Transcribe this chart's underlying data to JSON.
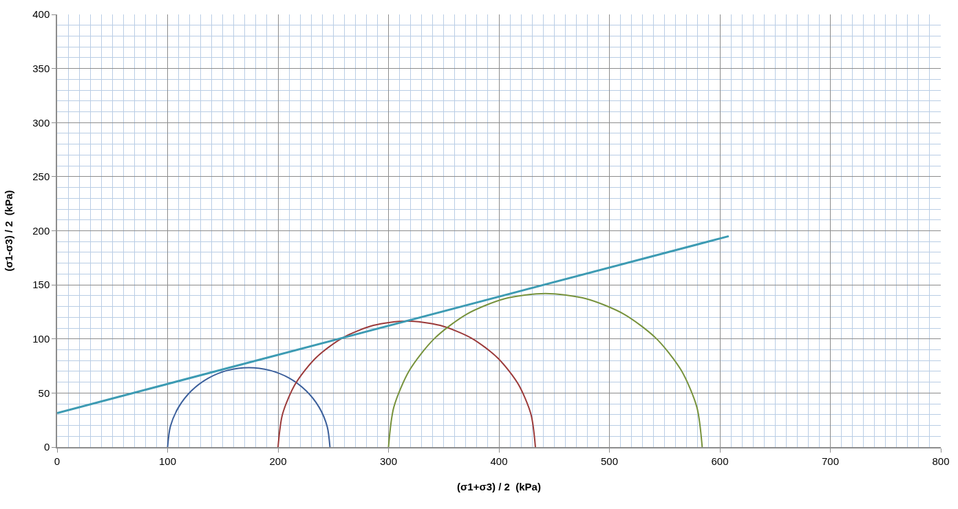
{
  "chart_data": {
    "type": "line",
    "xlabel": "(σ1+σ3) / 2  (kPa)",
    "ylabel": "(σ1-σ3) / 2  (kPa)",
    "xlim": [
      0,
      800
    ],
    "xticks": [
      0,
      {
        "value": 10,
        "label": null
      },
      {
        "value": 20,
        "label": null
      },
      {
        "value": 30,
        "label": null
      },
      {
        "value": 40,
        "label": null
      },
      {
        "value": 50,
        "label": null
      },
      {
        "value": 60,
        "label": null
      },
      {
        "value": 70,
        "label": null
      },
      {
        "value": 80,
        "label": null
      },
      {
        "value": 90,
        "label": null
      },
      100,
      {
        "value": 110,
        "label": null
      },
      {
        "value": 120,
        "label": null
      },
      {
        "value": 130,
        "label": null
      },
      {
        "value": 140,
        "label": null
      },
      {
        "value": 150,
        "label": null
      },
      {
        "value": 160,
        "label": null
      },
      {
        "value": 170,
        "label": null
      },
      {
        "value": 180,
        "label": null
      },
      {
        "value": 190,
        "label": null
      },
      200,
      {
        "value": 210,
        "label": null
      },
      {
        "value": 220,
        "label": null
      },
      {
        "value": 230,
        "label": null
      },
      {
        "value": 240,
        "label": null
      },
      {
        "value": 250,
        "label": null
      },
      {
        "value": 260,
        "label": null
      },
      {
        "value": 270,
        "label": null
      },
      {
        "value": 280,
        "label": null
      },
      {
        "value": 290,
        "label": null
      },
      300,
      {
        "value": 310,
        "label": null
      },
      {
        "value": 320,
        "label": null
      },
      {
        "value": 330,
        "label": null
      },
      {
        "value": 340,
        "label": null
      },
      {
        "value": 350,
        "label": null
      },
      {
        "value": 360,
        "label": null
      },
      {
        "value": 370,
        "label": null
      },
      {
        "value": 380,
        "label": null
      },
      {
        "value": 390,
        "label": null
      },
      400,
      {
        "value": 410,
        "label": null
      },
      {
        "value": 420,
        "label": null
      },
      {
        "value": 430,
        "label": null
      },
      {
        "value": 440,
        "label": null
      },
      {
        "value": 450,
        "label": null
      },
      {
        "value": 460,
        "label": null
      },
      {
        "value": 470,
        "label": null
      },
      {
        "value": 480,
        "label": null
      },
      {
        "value": 490,
        "label": null
      },
      500,
      {
        "value": 510,
        "label": null
      },
      {
        "value": 520,
        "label": null
      },
      {
        "value": 530,
        "label": null
      },
      {
        "value": 540,
        "label": null
      },
      {
        "value": 550,
        "label": null
      },
      {
        "value": 560,
        "label": null
      },
      {
        "value": 570,
        "label": null
      },
      {
        "value": 580,
        "label": null
      },
      {
        "value": 590,
        "label": null
      },
      600,
      {
        "value": 610,
        "label": null
      },
      {
        "value": 620,
        "label": null
      },
      {
        "value": 630,
        "label": null
      },
      {
        "value": 640,
        "label": null
      },
      {
        "value": 650,
        "label": null
      },
      {
        "value": 660,
        "label": null
      },
      {
        "value": 670,
        "label": null
      },
      {
        "value": 680,
        "label": null
      },
      {
        "value": 690,
        "label": null
      },
      700,
      {
        "value": 710,
        "label": null
      },
      {
        "value": 720,
        "label": null
      },
      {
        "value": 730,
        "label": null
      },
      {
        "value": 740,
        "label": null
      },
      {
        "value": 750,
        "label": null
      },
      {
        "value": 760,
        "label": null
      },
      {
        "value": 770,
        "label": null
      },
      {
        "value": 780,
        "label": null
      },
      {
        "value": 790,
        "label": null
      },
      800
    ],
    "ylim": [
      0,
      400
    ],
    "yticks": [
      0,
      {
        "value": 10,
        "label": null
      },
      {
        "value": 20,
        "label": null
      },
      {
        "value": 30,
        "label": null
      },
      {
        "value": 40,
        "label": null
      },
      50,
      {
        "value": 60,
        "label": null
      },
      {
        "value": 70,
        "label": null
      },
      {
        "value": 80,
        "label": null
      },
      {
        "value": 90,
        "label": null
      },
      100,
      {
        "value": 110,
        "label": null
      },
      {
        "value": 120,
        "label": null
      },
      {
        "value": 130,
        "label": null
      },
      {
        "value": 140,
        "label": null
      },
      150,
      {
        "value": 160,
        "label": null
      },
      {
        "value": 170,
        "label": null
      },
      {
        "value": 180,
        "label": null
      },
      {
        "value": 190,
        "label": null
      },
      200,
      {
        "value": 210,
        "label": null
      },
      {
        "value": 220,
        "label": null
      },
      {
        "value": 230,
        "label": null
      },
      {
        "value": 240,
        "label": null
      },
      250,
      {
        "value": 260,
        "label": null
      },
      {
        "value": 270,
        "label": null
      },
      {
        "value": 280,
        "label": null
      },
      {
        "value": 290,
        "label": null
      },
      300,
      {
        "value": 310,
        "label": null
      },
      {
        "value": 320,
        "label": null
      },
      {
        "value": 330,
        "label": null
      },
      {
        "value": 340,
        "label": null
      },
      350,
      {
        "value": 360,
        "label": null
      },
      {
        "value": 370,
        "label": null
      },
      {
        "value": 380,
        "label": null
      },
      {
        "value": 390,
        "label": null
      },
      400
    ],
    "grid": true,
    "marker": "none",
    "line_style": "solid",
    "series": [
      {
        "color": "#3b5f9b",
        "x": [
          100,
          102.5,
          109.9,
          121.5,
          136.8,
          154.5,
          173.5,
          192.5,
          210.3,
          225.5,
          237.2,
          244.5,
          247
        ],
        "values": [
          0,
          19,
          36.8,
          52,
          63.7,
          71,
          73.5,
          71,
          63.7,
          52,
          36.8,
          19,
          0
        ]
      },
      {
        "color": "#9b3a3a",
        "x": [
          200,
          204,
          215.6,
          234.1,
          258.3,
          286.3,
          316.5,
          346.7,
          374.8,
          398.9,
          417.4,
          429,
          433
        ],
        "values": [
          0,
          30.2,
          58.3,
          82.4,
          100.9,
          112.5,
          116.5,
          112.5,
          100.9,
          82.4,
          58.3,
          30.2,
          0
        ]
      },
      {
        "color": "#77923c",
        "x": [
          300,
          304.8,
          319,
          341.6,
          371,
          405.2,
          442,
          478.8,
          513,
          542.4,
          565,
          579.2,
          584
        ],
        "values": [
          0,
          36.8,
          71,
          100.4,
          123,
          137.2,
          142,
          137.2,
          123,
          100.4,
          71,
          36.8,
          0
        ]
      },
      {
        "color": "#3d9bb3",
        "x": [
          0,
          608
        ],
        "values": [
          31.5,
          195
        ]
      }
    ]
  }
}
